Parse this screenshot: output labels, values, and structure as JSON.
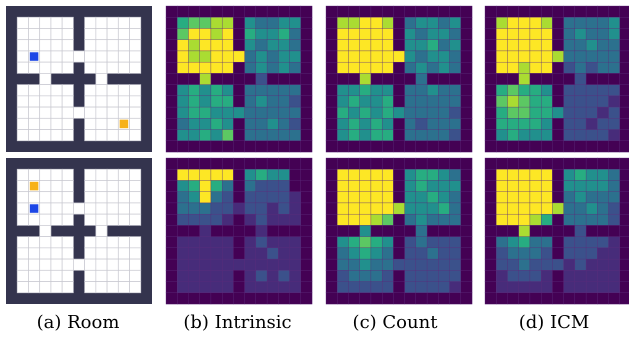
{
  "colors": {
    "wall": "#34344e",
    "floor": "#ffffff",
    "gridline": "#c8c8d0",
    "agent": "#1c46e6",
    "goal": "#f7b21a",
    "viridis": [
      "#440154",
      "#472c7a",
      "#3b518b",
      "#2c718e",
      "#21908d",
      "#27ad81",
      "#5cc863",
      "#aadc32",
      "#fde725"
    ]
  },
  "grid_size": 11,
  "rows": [
    {
      "room": {
        "agent": [
          3,
          1
        ],
        "goal": [
          9,
          9
        ]
      },
      "heatmaps": {
        "intrinsic": [
          [
            0,
            0,
            0,
            0,
            0,
            0,
            0,
            0,
            0,
            0,
            0,
            0,
            0
          ],
          [
            0,
            5,
            6,
            6,
            7,
            7,
            0,
            4,
            3,
            3,
            4,
            4,
            0
          ],
          [
            0,
            6,
            8,
            8,
            7,
            8,
            0,
            5,
            4,
            4,
            5,
            3,
            0
          ],
          [
            0,
            8,
            7,
            8,
            8,
            8,
            0,
            4,
            3,
            4,
            4,
            3,
            0
          ],
          [
            0,
            8,
            7,
            7,
            8,
            8,
            8,
            3,
            4,
            3,
            4,
            4,
            0
          ],
          [
            0,
            8,
            8,
            8,
            8,
            8,
            0,
            3,
            4,
            3,
            4,
            3,
            0
          ],
          [
            0,
            0,
            0,
            7,
            0,
            0,
            0,
            0,
            2,
            0,
            0,
            0,
            0
          ],
          [
            0,
            4,
            5,
            4,
            5,
            4,
            0,
            3,
            3,
            3,
            3,
            3,
            0
          ],
          [
            0,
            4,
            5,
            4,
            5,
            5,
            0,
            3,
            4,
            3,
            3,
            2,
            0
          ],
          [
            0,
            4,
            5,
            5,
            4,
            4,
            4,
            3,
            3,
            3,
            3,
            3,
            0
          ],
          [
            0,
            3,
            4,
            4,
            5,
            4,
            0,
            3,
            3,
            4,
            3,
            2,
            0
          ],
          [
            0,
            4,
            4,
            5,
            4,
            6,
            0,
            3,
            3,
            3,
            3,
            3,
            0
          ],
          [
            0,
            0,
            0,
            0,
            0,
            0,
            0,
            0,
            0,
            0,
            0,
            0,
            0
          ]
        ],
        "count": [
          [
            0,
            0,
            0,
            0,
            0,
            0,
            0,
            0,
            0,
            0,
            0,
            0,
            0
          ],
          [
            0,
            7,
            7,
            8,
            8,
            7,
            0,
            3,
            4,
            4,
            3,
            4,
            0
          ],
          [
            0,
            8,
            8,
            8,
            8,
            8,
            0,
            4,
            3,
            4,
            4,
            3,
            0
          ],
          [
            0,
            8,
            8,
            8,
            8,
            8,
            0,
            4,
            4,
            5,
            3,
            4,
            0
          ],
          [
            0,
            8,
            8,
            8,
            8,
            8,
            8,
            4,
            3,
            4,
            4,
            3,
            0
          ],
          [
            0,
            8,
            8,
            8,
            8,
            8,
            0,
            3,
            4,
            3,
            4,
            3,
            0
          ],
          [
            0,
            0,
            0,
            7,
            0,
            0,
            0,
            0,
            3,
            0,
            0,
            0,
            0
          ],
          [
            0,
            4,
            4,
            5,
            4,
            4,
            0,
            3,
            3,
            4,
            3,
            3,
            0
          ],
          [
            0,
            4,
            5,
            4,
            4,
            5,
            0,
            3,
            3,
            3,
            3,
            3,
            0
          ],
          [
            0,
            5,
            4,
            5,
            4,
            5,
            4,
            3,
            3,
            3,
            3,
            2,
            0
          ],
          [
            0,
            4,
            5,
            4,
            5,
            4,
            0,
            3,
            2,
            3,
            3,
            3,
            0
          ],
          [
            0,
            4,
            5,
            4,
            5,
            5,
            0,
            3,
            3,
            3,
            3,
            2,
            0
          ],
          [
            0,
            0,
            0,
            0,
            0,
            0,
            0,
            0,
            0,
            0,
            0,
            0,
            0
          ]
        ],
        "icm": [
          [
            0,
            0,
            0,
            0,
            0,
            0,
            0,
            0,
            0,
            0,
            0,
            0,
            0
          ],
          [
            0,
            7,
            8,
            8,
            8,
            7,
            0,
            3,
            3,
            3,
            3,
            4,
            0
          ],
          [
            0,
            8,
            8,
            8,
            8,
            8,
            0,
            3,
            4,
            3,
            3,
            4,
            0
          ],
          [
            0,
            8,
            8,
            8,
            8,
            8,
            0,
            3,
            3,
            4,
            3,
            3,
            0
          ],
          [
            0,
            8,
            8,
            8,
            8,
            8,
            7,
            3,
            3,
            3,
            3,
            3,
            0
          ],
          [
            0,
            8,
            8,
            7,
            8,
            8,
            0,
            2,
            3,
            2,
            3,
            3,
            0
          ],
          [
            0,
            0,
            0,
            7,
            0,
            0,
            0,
            0,
            2,
            0,
            0,
            0,
            0
          ],
          [
            0,
            5,
            6,
            5,
            5,
            4,
            0,
            2,
            2,
            2,
            2,
            2,
            0
          ],
          [
            0,
            6,
            7,
            6,
            5,
            5,
            0,
            2,
            2,
            2,
            2,
            1,
            0
          ],
          [
            0,
            5,
            6,
            6,
            5,
            5,
            4,
            2,
            2,
            2,
            1,
            2,
            0
          ],
          [
            0,
            5,
            5,
            5,
            5,
            4,
            0,
            2,
            2,
            1,
            2,
            2,
            0
          ],
          [
            0,
            4,
            5,
            4,
            4,
            4,
            0,
            2,
            2,
            2,
            2,
            1,
            0
          ],
          [
            0,
            0,
            0,
            0,
            0,
            0,
            0,
            0,
            0,
            0,
            0,
            0,
            0
          ]
        ]
      }
    },
    {
      "room": {
        "agent": [
          3,
          1
        ],
        "goal": [
          1,
          1
        ]
      },
      "heatmaps": {
        "intrinsic": [
          [
            0,
            0,
            0,
            0,
            0,
            0,
            0,
            0,
            0,
            0,
            0,
            0,
            0
          ],
          [
            0,
            8,
            8,
            8,
            8,
            8,
            0,
            4,
            5,
            4,
            4,
            0,
            0
          ],
          [
            0,
            4,
            5,
            8,
            5,
            3,
            0,
            3,
            2,
            2,
            2,
            0,
            0
          ],
          [
            0,
            3,
            4,
            8,
            3,
            2,
            0,
            2,
            2,
            2,
            2,
            1,
            0
          ],
          [
            0,
            3,
            3,
            3,
            2,
            2,
            1,
            2,
            2,
            1,
            2,
            1,
            0
          ],
          [
            0,
            2,
            2,
            2,
            2,
            1,
            0,
            1,
            2,
            1,
            1,
            1,
            0
          ],
          [
            0,
            0,
            0,
            1,
            0,
            0,
            0,
            0,
            1,
            0,
            0,
            0,
            0
          ],
          [
            0,
            1,
            1,
            1,
            1,
            1,
            0,
            1,
            2,
            1,
            1,
            1,
            0
          ],
          [
            0,
            1,
            1,
            1,
            1,
            1,
            0,
            1,
            1,
            2,
            1,
            1,
            0
          ],
          [
            0,
            1,
            1,
            1,
            1,
            1,
            1,
            1,
            1,
            1,
            1,
            1,
            0
          ],
          [
            0,
            1,
            1,
            1,
            1,
            1,
            0,
            1,
            2,
            1,
            2,
            1,
            0
          ],
          [
            0,
            1,
            1,
            1,
            1,
            1,
            0,
            1,
            1,
            1,
            1,
            1,
            0
          ],
          [
            0,
            0,
            0,
            0,
            0,
            0,
            0,
            0,
            0,
            0,
            0,
            0,
            0
          ]
        ],
        "count": [
          [
            0,
            0,
            0,
            0,
            0,
            0,
            0,
            0,
            0,
            0,
            0,
            0,
            0
          ],
          [
            0,
            8,
            8,
            8,
            8,
            8,
            0,
            4,
            5,
            5,
            4,
            3,
            0
          ],
          [
            0,
            8,
            8,
            8,
            8,
            8,
            0,
            4,
            5,
            4,
            4,
            4,
            0
          ],
          [
            0,
            8,
            8,
            8,
            8,
            8,
            0,
            4,
            4,
            5,
            4,
            3,
            0
          ],
          [
            0,
            8,
            8,
            8,
            8,
            8,
            7,
            4,
            4,
            4,
            5,
            3,
            0
          ],
          [
            0,
            8,
            8,
            8,
            7,
            6,
            0,
            3,
            4,
            3,
            3,
            3,
            0
          ],
          [
            0,
            0,
            0,
            4,
            0,
            0,
            0,
            0,
            3,
            0,
            0,
            0,
            0
          ],
          [
            0,
            4,
            5,
            6,
            5,
            4,
            0,
            2,
            3,
            2,
            2,
            2,
            0
          ],
          [
            0,
            3,
            4,
            5,
            4,
            3,
            0,
            2,
            2,
            3,
            2,
            2,
            0
          ],
          [
            0,
            3,
            3,
            4,
            3,
            3,
            2,
            2,
            2,
            2,
            2,
            2,
            0
          ],
          [
            0,
            2,
            3,
            3,
            3,
            2,
            0,
            2,
            2,
            2,
            2,
            2,
            0
          ],
          [
            0,
            2,
            2,
            2,
            2,
            2,
            0,
            2,
            2,
            2,
            2,
            1,
            0
          ],
          [
            0,
            0,
            0,
            0,
            0,
            0,
            0,
            0,
            0,
            0,
            0,
            0,
            0
          ]
        ],
        "icm": [
          [
            0,
            0,
            0,
            0,
            0,
            0,
            0,
            0,
            0,
            0,
            0,
            0,
            0
          ],
          [
            0,
            8,
            8,
            8,
            8,
            8,
            0,
            4,
            5,
            4,
            4,
            3,
            0
          ],
          [
            0,
            8,
            8,
            8,
            8,
            8,
            0,
            4,
            4,
            4,
            4,
            3,
            0
          ],
          [
            0,
            8,
            8,
            8,
            8,
            8,
            0,
            3,
            4,
            3,
            3,
            3,
            0
          ],
          [
            0,
            8,
            8,
            8,
            8,
            8,
            7,
            3,
            3,
            4,
            3,
            2,
            0
          ],
          [
            0,
            8,
            8,
            8,
            7,
            5,
            0,
            3,
            3,
            3,
            3,
            2,
            0
          ],
          [
            0,
            0,
            0,
            7,
            0,
            0,
            0,
            0,
            2,
            0,
            0,
            0,
            0
          ],
          [
            0,
            3,
            4,
            5,
            3,
            3,
            0,
            2,
            2,
            2,
            2,
            1,
            0
          ],
          [
            0,
            2,
            3,
            3,
            3,
            2,
            0,
            2,
            2,
            2,
            1,
            1,
            0
          ],
          [
            0,
            2,
            2,
            3,
            2,
            2,
            2,
            1,
            2,
            1,
            1,
            1,
            0
          ],
          [
            0,
            1,
            2,
            2,
            2,
            1,
            0,
            1,
            1,
            1,
            1,
            1,
            0
          ],
          [
            0,
            1,
            1,
            1,
            1,
            1,
            0,
            1,
            1,
            1,
            1,
            1,
            0
          ],
          [
            0,
            0,
            0,
            0,
            0,
            0,
            0,
            0,
            0,
            0,
            0,
            0,
            0
          ]
        ]
      }
    }
  ],
  "captions": {
    "room": "(a) Room",
    "intrinsic": "(b) Intrinsic",
    "count": "(c) Count",
    "icm": "(d) ICM"
  }
}
